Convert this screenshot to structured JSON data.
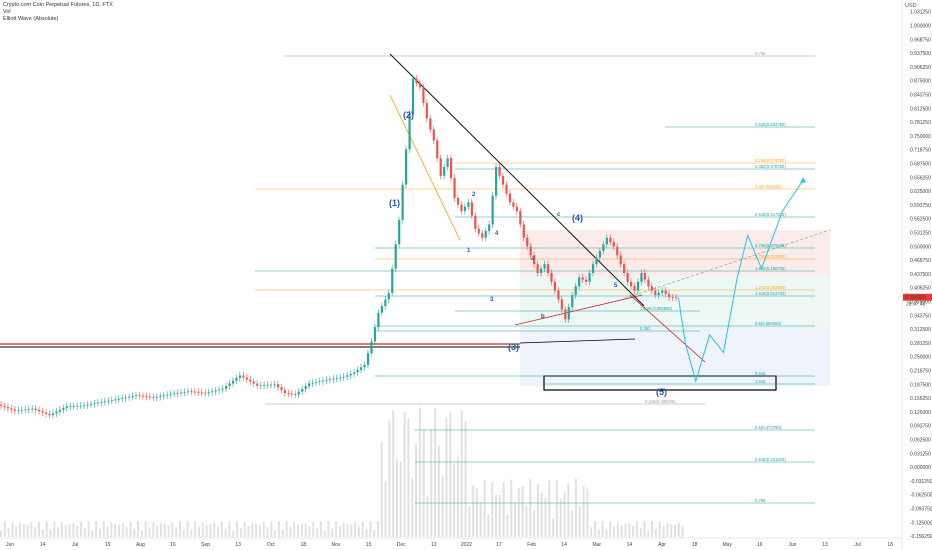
{
  "header": {
    "symbol": "Crypto.com Coin Perpetual Futures, 1D, FTX",
    "indicator1": "Vol",
    "indicator2": "Elliott Wave (Absolute)"
  },
  "axis_unit": "USD",
  "chart_data": {
    "type": "candlestick",
    "title": "Crypto.com Coin Perpetual Futures, 1D, FTX",
    "x_ticks": [
      "Jun",
      "14",
      "Jul",
      "19",
      "Aug",
      "16",
      "Sep",
      "13",
      "Oct",
      "18",
      "Nov",
      "15",
      "Dec",
      "13",
      "2022",
      "17",
      "Feb",
      "14",
      "Mar",
      "14",
      "Apr",
      "18",
      "May",
      "16",
      "Jun",
      "13",
      "Jul",
      "18"
    ],
    "y_ticks": [
      "1.031250",
      "1.000000",
      "0.968750",
      "0.937500",
      "0.906250",
      "0.875000",
      "0.843750",
      "0.812500",
      "0.781250",
      "0.750000",
      "0.718750",
      "0.687500",
      "0.656250",
      "0.625000",
      "0.593750",
      "0.562500",
      "0.531250",
      "0.500000",
      "0.468750",
      "0.437500",
      "0.406250",
      "0.375000",
      "0.343750",
      "0.312500",
      "0.281250",
      "0.250000",
      "0.218750",
      "0.187500",
      "0.156250",
      "0.125000",
      "0.093750",
      "0.062500",
      "0.031250",
      "0.000000",
      "-0.031250",
      "-0.062500",
      "-0.093750",
      "-0.125000",
      "-0.156250"
    ],
    "ylim": [
      -0.16,
      1.04
    ],
    "last_price": "0.384050",
    "last_price_sub": "28:47:48",
    "price_path": [
      {
        "t": 0,
        "p": 0.142
      },
      {
        "t": 5,
        "p": 0.128
      },
      {
        "t": 10,
        "p": 0.133
      },
      {
        "t": 15,
        "p": 0.118
      },
      {
        "t": 20,
        "p": 0.138
      },
      {
        "t": 25,
        "p": 0.14
      },
      {
        "t": 30,
        "p": 0.148
      },
      {
        "t": 35,
        "p": 0.155
      },
      {
        "t": 40,
        "p": 0.163
      },
      {
        "t": 45,
        "p": 0.158
      },
      {
        "t": 50,
        "p": 0.166
      },
      {
        "t": 55,
        "p": 0.172
      },
      {
        "t": 60,
        "p": 0.168
      },
      {
        "t": 65,
        "p": 0.178
      },
      {
        "t": 70,
        "p": 0.208
      },
      {
        "t": 75,
        "p": 0.185
      },
      {
        "t": 80,
        "p": 0.188
      },
      {
        "t": 83,
        "p": 0.168
      },
      {
        "t": 86,
        "p": 0.165
      },
      {
        "t": 90,
        "p": 0.19
      },
      {
        "t": 95,
        "p": 0.198
      },
      {
        "t": 100,
        "p": 0.205
      },
      {
        "t": 103,
        "p": 0.215
      },
      {
        "t": 106,
        "p": 0.232
      },
      {
        "t": 108,
        "p": 0.285
      },
      {
        "t": 110,
        "p": 0.35
      },
      {
        "t": 113,
        "p": 0.395
      },
      {
        "t": 116,
        "p": 0.56
      },
      {
        "t": 118,
        "p": 0.72
      },
      {
        "t": 120,
        "p": 0.88
      },
      {
        "t": 122,
        "p": 0.86
      },
      {
        "t": 124,
        "p": 0.79
      },
      {
        "t": 126,
        "p": 0.74
      },
      {
        "t": 128,
        "p": 0.66
      },
      {
        "t": 130,
        "p": 0.7
      },
      {
        "t": 132,
        "p": 0.61
      },
      {
        "t": 134,
        "p": 0.58
      },
      {
        "t": 136,
        "p": 0.6
      },
      {
        "t": 138,
        "p": 0.54
      },
      {
        "t": 140,
        "p": 0.52
      },
      {
        "t": 142,
        "p": 0.55
      },
      {
        "t": 144,
        "p": 0.68
      },
      {
        "t": 146,
        "p": 0.64
      },
      {
        "t": 148,
        "p": 0.6
      },
      {
        "t": 150,
        "p": 0.58
      },
      {
        "t": 152,
        "p": 0.52
      },
      {
        "t": 154,
        "p": 0.48
      },
      {
        "t": 156,
        "p": 0.44
      },
      {
        "t": 158,
        "p": 0.46
      },
      {
        "t": 160,
        "p": 0.42
      },
      {
        "t": 162,
        "p": 0.38
      },
      {
        "t": 164,
        "p": 0.335
      },
      {
        "t": 166,
        "p": 0.39
      },
      {
        "t": 168,
        "p": 0.43
      },
      {
        "t": 170,
        "p": 0.42
      },
      {
        "t": 172,
        "p": 0.46
      },
      {
        "t": 174,
        "p": 0.49
      },
      {
        "t": 176,
        "p": 0.52
      },
      {
        "t": 178,
        "p": 0.5
      },
      {
        "t": 180,
        "p": 0.46
      },
      {
        "t": 182,
        "p": 0.42
      },
      {
        "t": 184,
        "p": 0.4
      },
      {
        "t": 186,
        "p": 0.44
      },
      {
        "t": 188,
        "p": 0.41
      },
      {
        "t": 190,
        "p": 0.39
      },
      {
        "t": 192,
        "p": 0.4
      },
      {
        "t": 194,
        "p": 0.385
      },
      {
        "t": 196,
        "p": 0.384
      }
    ],
    "projection_path": [
      {
        "t": 196,
        "p": 0.384
      },
      {
        "t": 198,
        "p": 0.28
      },
      {
        "t": 201,
        "p": 0.195
      },
      {
        "t": 205,
        "p": 0.3
      },
      {
        "t": 209,
        "p": 0.26
      },
      {
        "t": 213,
        "p": 0.43
      },
      {
        "t": 216,
        "p": 0.525
      },
      {
        "t": 220,
        "p": 0.45
      },
      {
        "t": 226,
        "p": 0.58
      },
      {
        "t": 232,
        "p": 0.65
      }
    ],
    "fib_labels": [
      "0.786",
      "0.618(0.634750)",
      "0.236(0.574750)",
      "0.382(0.478750)",
      "0.5(0.449205)",
      "0.618(0.417625)",
      "0.786(0.379925)",
      "0.786(0.312250)",
      "1.618(0.186705)",
      "1.272(0.082500)",
      "1.618(0.014700)",
      "1.618(-0.082500)",
      "0.5(0.680000)",
      "0.382",
      "0.618",
      "1.618",
      "0.236(0.495205)",
      "0.5(0.473790)",
      "0.618(0.401625)",
      "0.786"
    ],
    "wave_labels": [
      "(2)",
      "(1)",
      "(4)",
      "(3)",
      "(5)",
      "1",
      "2",
      "3",
      "4",
      "5",
      "a",
      "b",
      "c"
    ]
  }
}
